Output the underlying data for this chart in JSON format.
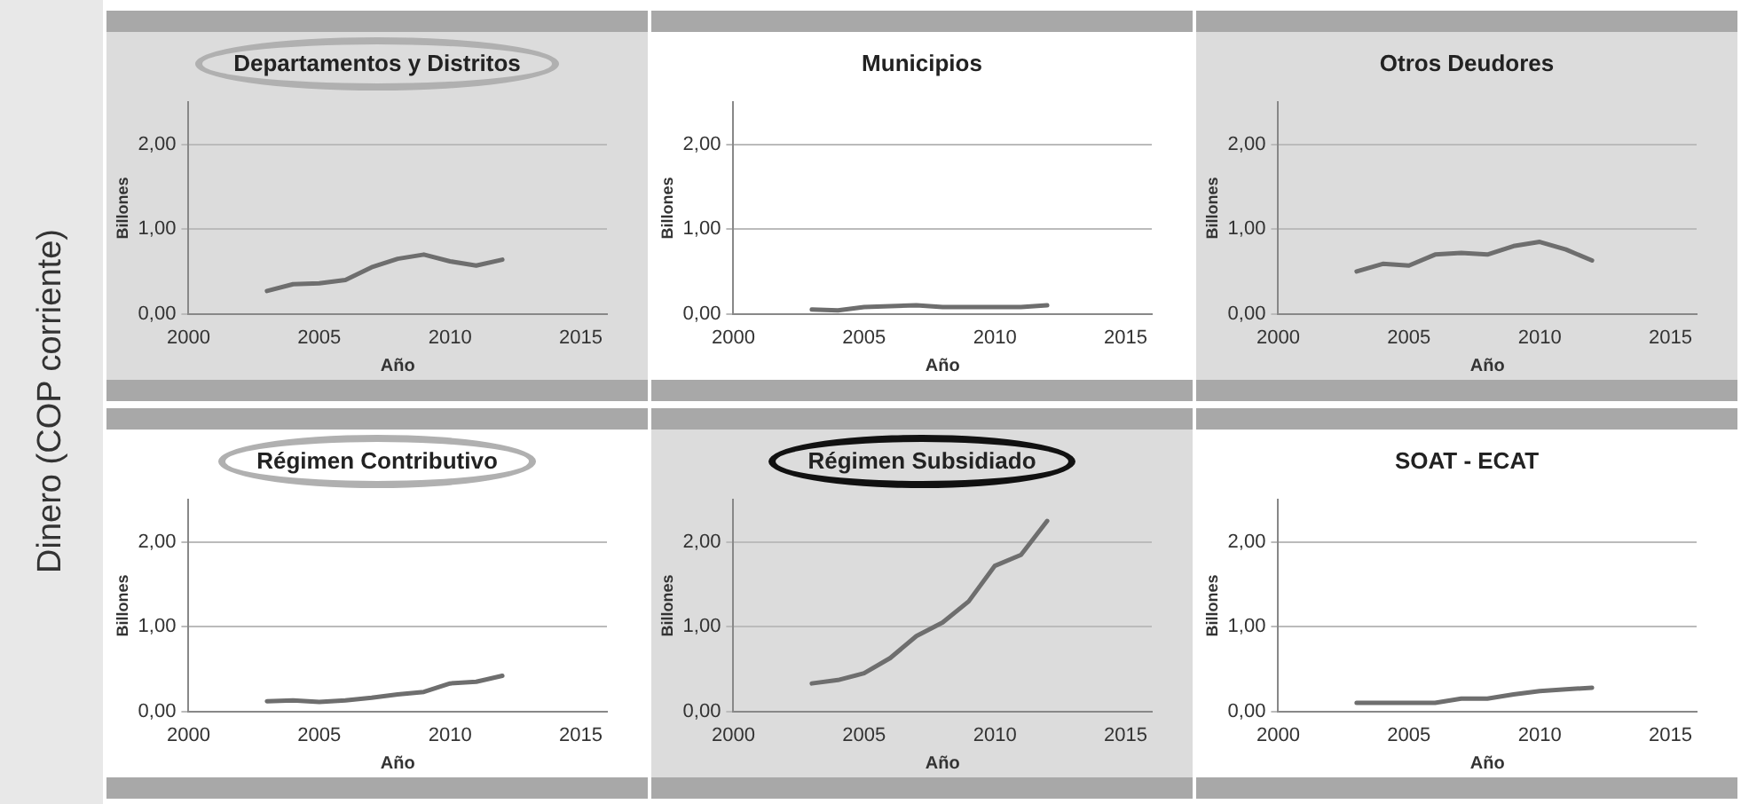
{
  "chart_data": [
    {
      "type": "line",
      "title": "Departamentos y Distritos",
      "xlabel": "Año",
      "ylabel": "Billones",
      "annotations": [
        "Dinero (COP corriente)"
      ],
      "x": [
        2003,
        2004,
        2005,
        2006,
        2007,
        2008,
        2009,
        2010,
        2011,
        2012
      ],
      "values": [
        0.27,
        0.35,
        0.36,
        0.4,
        0.55,
        0.65,
        0.7,
        0.62,
        0.57,
        0.64
      ],
      "color": "#6e6e6e",
      "xlim": [
        2000,
        2016
      ],
      "ylim": [
        0,
        2.5
      ],
      "xticks": [
        2000,
        2005,
        2010,
        2015
      ],
      "yticks": [
        {
          "value": 0,
          "label": "0,00"
        },
        {
          "value": 1,
          "label": "1,00"
        },
        {
          "value": 2,
          "label": "2,00"
        }
      ],
      "grid": "y"
    },
    {
      "type": "line",
      "title": "Municipios",
      "xlabel": "Año",
      "ylabel": "Billones",
      "x": [
        2003,
        2004,
        2005,
        2006,
        2007,
        2008,
        2009,
        2010,
        2011,
        2012
      ],
      "values": [
        0.05,
        0.04,
        0.08,
        0.09,
        0.1,
        0.08,
        0.08,
        0.08,
        0.08,
        0.1
      ],
      "color": "#6e6e6e",
      "xlim": [
        2000,
        2016
      ],
      "ylim": [
        0,
        2.5
      ],
      "xticks": [
        2000,
        2005,
        2010,
        2015
      ],
      "yticks": [
        {
          "value": 0,
          "label": "0,00"
        },
        {
          "value": 1,
          "label": "1,00"
        },
        {
          "value": 2,
          "label": "2,00"
        }
      ],
      "grid": "y"
    },
    {
      "type": "line",
      "title": "Otros Deudores",
      "xlabel": "Año",
      "ylabel": "Billones",
      "x": [
        2003,
        2004,
        2005,
        2006,
        2007,
        2008,
        2009,
        2010,
        2011,
        2012
      ],
      "values": [
        0.5,
        0.59,
        0.57,
        0.7,
        0.72,
        0.7,
        0.8,
        0.85,
        0.76,
        0.63
      ],
      "color": "#6e6e6e",
      "xlim": [
        2000,
        2016
      ],
      "ylim": [
        0,
        2.5
      ],
      "xticks": [
        2000,
        2005,
        2010,
        2015
      ],
      "yticks": [
        {
          "value": 0,
          "label": "0,00"
        },
        {
          "value": 1,
          "label": "1,00"
        },
        {
          "value": 2,
          "label": "2,00"
        }
      ],
      "grid": "y"
    },
    {
      "type": "line",
      "title": "Régimen Contributivo",
      "xlabel": "Año",
      "ylabel": "Billones",
      "x": [
        2003,
        2004,
        2005,
        2006,
        2007,
        2008,
        2009,
        2010,
        2011,
        2012
      ],
      "values": [
        0.12,
        0.13,
        0.11,
        0.13,
        0.16,
        0.2,
        0.23,
        0.33,
        0.35,
        0.42
      ],
      "color": "#6e6e6e",
      "xlim": [
        2000,
        2016
      ],
      "ylim": [
        0,
        2.5
      ],
      "xticks": [
        2000,
        2005,
        2010,
        2015
      ],
      "yticks": [
        {
          "value": 0,
          "label": "0,00"
        },
        {
          "value": 1,
          "label": "1,00"
        },
        {
          "value": 2,
          "label": "2,00"
        }
      ],
      "grid": "y"
    },
    {
      "type": "line",
      "title": "Régimen Subsidiado",
      "xlabel": "Año",
      "ylabel": "Billones",
      "x": [
        2003,
        2004,
        2005,
        2006,
        2007,
        2008,
        2009,
        2010,
        2011,
        2012
      ],
      "values": [
        0.33,
        0.37,
        0.45,
        0.63,
        0.89,
        1.05,
        1.3,
        1.72,
        1.85,
        2.25
      ],
      "color": "#6e6e6e",
      "xlim": [
        2000,
        2016
      ],
      "ylim": [
        0,
        2.5
      ],
      "xticks": [
        2000,
        2005,
        2010,
        2015
      ],
      "yticks": [
        {
          "value": 0,
          "label": "0,00"
        },
        {
          "value": 1,
          "label": "1,00"
        },
        {
          "value": 2,
          "label": "2,00"
        }
      ],
      "grid": "y"
    },
    {
      "type": "line",
      "title": "SOAT - ECAT",
      "xlabel": "Año",
      "ylabel": "Billones",
      "x": [
        2003,
        2004,
        2005,
        2006,
        2007,
        2008,
        2009,
        2010,
        2011,
        2012
      ],
      "values": [
        0.1,
        0.1,
        0.1,
        0.1,
        0.15,
        0.15,
        0.2,
        0.24,
        0.26,
        0.28
      ],
      "color": "#6e6e6e",
      "xlim": [
        2000,
        2016
      ],
      "ylim": [
        0,
        2.5
      ],
      "xticks": [
        2000,
        2005,
        2010,
        2015
      ],
      "yticks": [
        {
          "value": 0,
          "label": "0,00"
        },
        {
          "value": 1,
          "label": "1,00"
        },
        {
          "value": 2,
          "label": "2,00"
        }
      ],
      "grid": "y"
    }
  ]
}
